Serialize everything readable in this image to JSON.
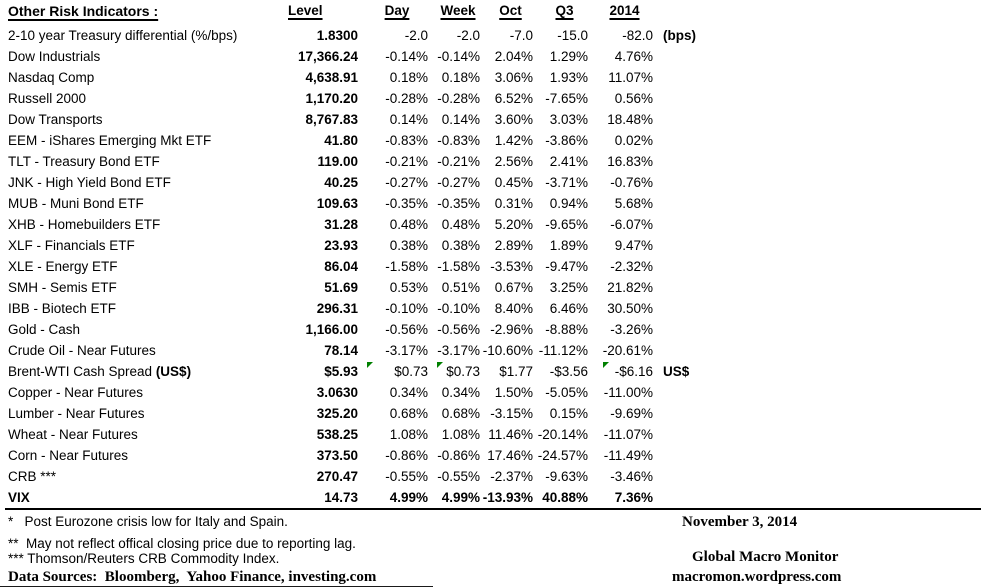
{
  "colors": {
    "flag_green": "#008000",
    "text": "#000000"
  },
  "chart_data": {
    "type": "table",
    "title": "Other Risk Indicators :",
    "columns": {
      "level": "Level",
      "day": "Day",
      "week": "Week",
      "oct": "Oct",
      "q3": "Q3",
      "y2014": "2014"
    },
    "rows": [
      {
        "label": "2-10 year Treasury differential (%/bps)",
        "level": "1.8300",
        "day": "-2.0",
        "week": "-2.0",
        "oct": "-7.0",
        "q3": "-15.0",
        "y2014": "-82.0",
        "suffix": "(bps)"
      },
      {
        "label": "Dow Industrials",
        "level": "17,366.24",
        "day": "-0.14%",
        "week": "-0.14%",
        "oct": "2.04%",
        "q3": "1.29%",
        "y2014": "4.76%"
      },
      {
        "label": "Nasdaq Comp",
        "level": "4,638.91",
        "day": "0.18%",
        "week": "0.18%",
        "oct": "3.06%",
        "q3": "1.93%",
        "y2014": "11.07%"
      },
      {
        "label": "Russell 2000",
        "level": "1,170.20",
        "day": "-0.28%",
        "week": "-0.28%",
        "oct": "6.52%",
        "q3": "-7.65%",
        "y2014": "0.56%"
      },
      {
        "label": "Dow Transports",
        "level": "8,767.83",
        "day": "0.14%",
        "week": "0.14%",
        "oct": "3.60%",
        "q3": "3.03%",
        "y2014": "18.48%"
      },
      {
        "label": "EEM - iShares Emerging Mkt ETF",
        "level": "41.80",
        "day": "-0.83%",
        "week": "-0.83%",
        "oct": "1.42%",
        "q3": "-3.86%",
        "y2014": "0.02%"
      },
      {
        "label": "TLT - Treasury Bond ETF",
        "level": "119.00",
        "day": "-0.21%",
        "week": "-0.21%",
        "oct": "2.56%",
        "q3": "2.41%",
        "y2014": "16.83%"
      },
      {
        "label": "JNK - High Yield Bond ETF",
        "level": "40.25",
        "day": "-0.27%",
        "week": "-0.27%",
        "oct": "0.45%",
        "q3": "-3.71%",
        "y2014": "-0.76%"
      },
      {
        "label": "MUB - Muni Bond ETF",
        "level": "109.63",
        "day": "-0.35%",
        "week": "-0.35%",
        "oct": "0.31%",
        "q3": "0.94%",
        "y2014": "5.68%"
      },
      {
        "label": "XHB - Homebuilders ETF",
        "level": "31.28",
        "day": "0.48%",
        "week": "0.48%",
        "oct": "5.20%",
        "q3": "-9.65%",
        "y2014": "-6.07%"
      },
      {
        "label": "XLF - Financials ETF",
        "level": "23.93",
        "day": "0.38%",
        "week": "0.38%",
        "oct": "2.89%",
        "q3": "1.89%",
        "y2014": "9.47%"
      },
      {
        "label": "XLE - Energy ETF",
        "level": "86.04",
        "day": "-1.58%",
        "week": "-1.58%",
        "oct": "-3.53%",
        "q3": "-9.47%",
        "y2014": "-2.32%"
      },
      {
        "label": "SMH - Semis ETF",
        "level": "51.69",
        "day": "0.53%",
        "week": "0.51%",
        "oct": "0.67%",
        "q3": "3.25%",
        "y2014": "21.82%"
      },
      {
        "label": "IBB - Biotech ETF",
        "level": "296.31",
        "day": "-0.10%",
        "week": "-0.10%",
        "oct": "8.40%",
        "q3": "6.46%",
        "y2014": "30.50%"
      },
      {
        "label": "Gold - Cash",
        "level": "1,166.00",
        "day": "-0.56%",
        "week": "-0.56%",
        "oct": "-2.96%",
        "q3": "-8.88%",
        "y2014": "-3.26%"
      },
      {
        "label": "Crude Oil - Near Futures",
        "level": "78.14",
        "day": "-3.17%",
        "week": "-3.17%",
        "oct": "-10.60%",
        "q3": "-11.12%",
        "y2014": "-20.61%"
      },
      {
        "label": "Brent-WTI Cash Spread (US$)",
        "label_bold": "(US$)",
        "level": "$5.93",
        "day": "$0.73",
        "week": "$0.73",
        "oct": "$1.77",
        "q3": "-$3.56",
        "y2014": "-$6.16",
        "suffix": "US$",
        "flags": [
          "day",
          "week",
          "y2014"
        ]
      },
      {
        "label": "Copper - Near Futures",
        "level": "3.0630",
        "day": "0.34%",
        "week": "0.34%",
        "oct": "1.50%",
        "q3": "-5.05%",
        "y2014": "-11.00%"
      },
      {
        "label": "Lumber - Near Futures",
        "level": "325.20",
        "day": "0.68%",
        "week": "0.68%",
        "oct": "-3.15%",
        "q3": "0.15%",
        "y2014": "-9.69%"
      },
      {
        "label": "Wheat - Near Futures",
        "level": "538.25",
        "day": "1.08%",
        "week": "1.08%",
        "oct": "11.46%",
        "q3": "-20.14%",
        "y2014": "-11.07%"
      },
      {
        "label": "Corn - Near Futures",
        "level": "373.50",
        "day": "-0.86%",
        "week": "-0.86%",
        "oct": "17.46%",
        "q3": "-24.57%",
        "y2014": "-11.49%"
      },
      {
        "label": "CRB ***",
        "level": "270.47",
        "day": "-0.55%",
        "week": "-0.55%",
        "oct": "-2.37%",
        "q3": "-9.63%",
        "y2014": "-3.46%"
      },
      {
        "label": "VIX",
        "level": "14.73",
        "day": "4.99%",
        "week": "4.99%",
        "oct": "-13.93%",
        "q3": "40.88%",
        "y2014": "7.36%",
        "bold": true
      }
    ]
  },
  "footer": {
    "footnote1": "*   Post Eurozone crisis low for Italy and Spain.",
    "footnote2": "**  May not reflect offical closing price due to reporting lag.",
    "footnote3": "*** Thomson/Reuters CRB Commodity Index.",
    "data_sources": "Data Sources:  Bloomberg,  Yahoo Finance, investing.com",
    "date": "November 3, 2014",
    "brand": "Global Macro Monitor",
    "url": "macromon.wordpress.com"
  }
}
